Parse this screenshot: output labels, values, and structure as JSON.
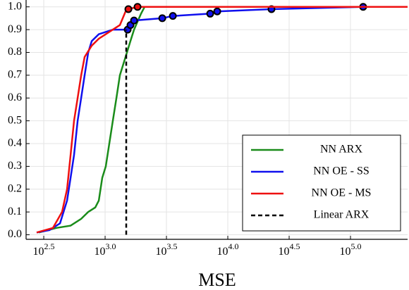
{
  "chart_data": {
    "type": "line",
    "xlabel": "MSE",
    "xscale": "log",
    "xlim": [
      227,
      292000
    ],
    "ylim": [
      -0.02,
      1.03
    ],
    "xticks": [
      {
        "value": 316.23,
        "label": "10^2.5"
      },
      {
        "value": 1000,
        "label": "10^3.0"
      },
      {
        "value": 3162.3,
        "label": "10^3.5"
      },
      {
        "value": 10000,
        "label": "10^4.0"
      },
      {
        "value": 31623,
        "label": "10^4.5"
      },
      {
        "value": 100000,
        "label": "10^5.0"
      }
    ],
    "yticks": [
      {
        "value": 0,
        "label": "0.0"
      },
      0.1,
      0.2,
      0.3,
      0.4,
      0.5,
      0.6,
      0.7,
      0.8,
      0.9,
      {
        "value": 1,
        "label": "1.0"
      }
    ],
    "grid": true,
    "legend": "lower right",
    "series": [
      {
        "name": "NN ARX",
        "color": "#1a8c1a",
        "x": [
          288,
          401,
          523,
          638,
          728,
          831,
          888,
          948,
          1013,
          1082,
          1156,
          1236,
          1320,
          1410,
          1506,
          1610,
          1721,
          1964,
          2099,
          292000
        ],
        "values": [
          0.01,
          0.03,
          0.04,
          0.07,
          0.1,
          0.12,
          0.15,
          0.25,
          0.3,
          0.4,
          0.5,
          0.6,
          0.7,
          0.75,
          0.8,
          0.85,
          0.9,
          0.97,
          1.0,
          1.0
        ]
      },
      {
        "name": "NN OE - SS",
        "color": "#1010ee",
        "x": [
          277,
          352,
          429,
          490,
          523,
          558,
          597,
          638,
          681,
          728,
          778,
          888,
          1156,
          1410,
          1527,
          1610,
          1721,
          2924,
          3566,
          7185,
          8200,
          22700,
          126800,
          292000
        ],
        "values": [
          0.01,
          0.02,
          0.05,
          0.15,
          0.25,
          0.35,
          0.5,
          0.6,
          0.7,
          0.8,
          0.85,
          0.88,
          0.9,
          0.9,
          0.9,
          0.92,
          0.94,
          0.95,
          0.96,
          0.97,
          0.98,
          0.99,
          1.0,
          1.0
        ],
        "marker_x": [
          1527,
          1610,
          1721,
          2924,
          3566,
          7185,
          8200,
          22700,
          126800
        ],
        "marker_values": [
          0.9,
          0.92,
          0.94,
          0.95,
          0.96,
          0.97,
          0.98,
          0.99,
          1.0
        ]
      },
      {
        "name": "NN OE - MS",
        "color": "#ee1010",
        "x": [
          277,
          376,
          446,
          490,
          523,
          558,
          597,
          638,
          681,
          778,
          888,
          1013,
          1156,
          1320,
          1468,
          1548,
          1838,
          292000
        ],
        "values": [
          0.01,
          0.03,
          0.1,
          0.2,
          0.35,
          0.5,
          0.6,
          0.7,
          0.78,
          0.83,
          0.86,
          0.88,
          0.9,
          0.92,
          0.98,
          0.99,
          1.0,
          1.0
        ],
        "marker_x": [
          1548,
          1838
        ],
        "marker_values": [
          0.99,
          1.0
        ]
      },
      {
        "name": "Linear ARX",
        "color": "#000000",
        "dashed": true,
        "x": [
          1486,
          1486
        ],
        "values": [
          0,
          0.9
        ]
      }
    ]
  }
}
